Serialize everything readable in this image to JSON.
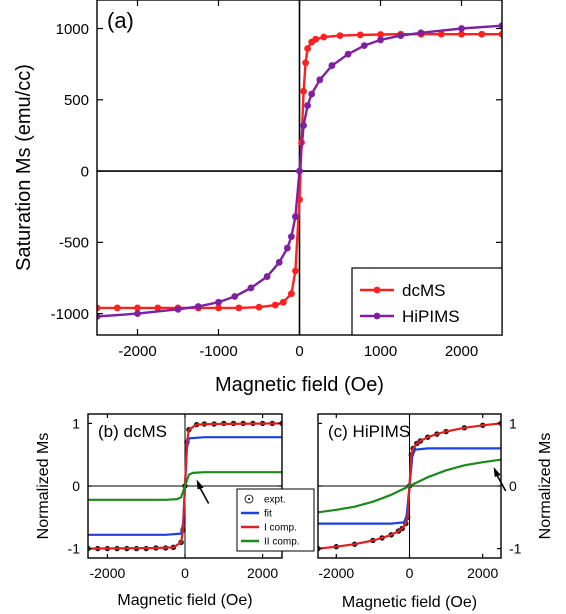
{
  "chart_data": [
    {
      "type": "line",
      "panel_label": "(a)",
      "xlabel": "Magnetic field (Oe)",
      "ylabel": "Saturation Ms (emu/cc)",
      "xlim": [
        -2500,
        2500
      ],
      "ylim": [
        -1150,
        1200
      ],
      "xticks": [
        -2000,
        -1000,
        0,
        1000,
        2000
      ],
      "yticks": [
        -1000,
        -500,
        0,
        500,
        1000
      ],
      "zero_lines": true,
      "legend_position": "bottom-right",
      "series": [
        {
          "name": "dcMS",
          "color": "#ff2020",
          "markers": true,
          "x": [
            -2500,
            -2250,
            -2000,
            -1750,
            -1500,
            -1250,
            -1000,
            -750,
            -500,
            -300,
            -200,
            -100,
            -50,
            0,
            25,
            50,
            75,
            100,
            150,
            200,
            300,
            500,
            750,
            1000,
            1250,
            1500,
            1750,
            2000,
            2250,
            2500
          ],
          "y": [
            -960,
            -960,
            -960,
            -960,
            -960,
            -960,
            -960,
            -960,
            -955,
            -940,
            -920,
            -860,
            -700,
            -200,
            200,
            560,
            760,
            860,
            905,
            925,
            940,
            950,
            955,
            958,
            960,
            960,
            960,
            960,
            960,
            960
          ]
        },
        {
          "name": "HiPIMS",
          "color": "#8020a0",
          "markers": true,
          "x": [
            -2500,
            -2000,
            -1500,
            -1250,
            -1000,
            -800,
            -600,
            -400,
            -250,
            -150,
            -100,
            -50,
            0,
            50,
            100,
            150,
            250,
            400,
            600,
            800,
            1000,
            1250,
            1500,
            2000,
            2500
          ],
          "y": [
            -1020,
            -1000,
            -970,
            -950,
            -920,
            -880,
            -820,
            -740,
            -640,
            -540,
            -460,
            -320,
            0,
            320,
            460,
            540,
            640,
            740,
            820,
            880,
            920,
            950,
            970,
            1000,
            1020
          ]
        }
      ]
    },
    {
      "type": "line",
      "panel_label": "(b) dcMS",
      "xlabel": "Magnetic field (Oe)",
      "ylabel": "Normalized Ms",
      "xlim": [
        -2500,
        2500
      ],
      "ylim": [
        -1.15,
        1.15
      ],
      "xticks": [
        -2000,
        0,
        2000
      ],
      "yticks": [
        -1,
        0,
        1
      ],
      "zero_lines": true,
      "annotation_arrow_x": 300,
      "legend_position": "bottom-right",
      "series": [
        {
          "name": "expt.",
          "color": "#000000",
          "markers": "open-circle",
          "x": [
            -2500,
            -2250,
            -2000,
            -1750,
            -1500,
            -1250,
            -1000,
            -750,
            -500,
            -300,
            -100,
            -50,
            0,
            50,
            100,
            300,
            500,
            750,
            1000,
            1250,
            1500,
            1750,
            2000,
            2250,
            2500
          ],
          "y": [
            -1.0,
            -1.0,
            -1.0,
            -1.0,
            -1.0,
            -1.0,
            -1.0,
            -0.99,
            -0.99,
            -0.98,
            -0.9,
            -0.7,
            0.0,
            0.7,
            0.9,
            0.98,
            0.99,
            0.99,
            1.0,
            1.0,
            1.0,
            1.0,
            1.0,
            1.0,
            1.0
          ]
        },
        {
          "name": "fit",
          "color": "#1f3fe0",
          "x": [
            -2500,
            -500,
            -100,
            -50,
            0,
            50,
            100,
            500,
            2500
          ],
          "y": [
            -0.78,
            -0.78,
            -0.76,
            -0.6,
            0.0,
            0.6,
            0.76,
            0.78,
            0.78
          ]
        },
        {
          "name": "I comp.",
          "color": "#e02020",
          "x": [
            -2500,
            -750,
            -300,
            -100,
            -50,
            0,
            50,
            100,
            300,
            750,
            2500
          ],
          "y": [
            -1.0,
            -0.99,
            -0.98,
            -0.9,
            -0.7,
            0.0,
            0.7,
            0.9,
            0.98,
            0.99,
            1.0
          ]
        },
        {
          "name": "II comp.",
          "color": "#1a8a1a",
          "x": [
            -2500,
            -500,
            -200,
            -100,
            0,
            100,
            200,
            500,
            2500
          ],
          "y": [
            -0.22,
            -0.22,
            -0.21,
            -0.18,
            0.0,
            0.18,
            0.21,
            0.22,
            0.22
          ]
        }
      ]
    },
    {
      "type": "line",
      "panel_label": "(c) HiPIMS",
      "xlabel": "Magnetic field (Oe)",
      "ylabel": "Normalized Ms",
      "xlim": [
        -2500,
        2500
      ],
      "ylim": [
        -1.15,
        1.15
      ],
      "xticks": [
        -2000,
        0,
        2000
      ],
      "yticks": [
        -1,
        0,
        1
      ],
      "zero_lines": true,
      "annotation_arrow_x": 2300,
      "series": [
        {
          "name": "expt.",
          "color": "#000000",
          "markers": "open-circle",
          "x": [
            -2500,
            -2000,
            -1500,
            -1000,
            -750,
            -500,
            -300,
            -200,
            -100,
            -50,
            0,
            50,
            100,
            200,
            300,
            500,
            750,
            1000,
            1500,
            2000,
            2500
          ],
          "y": [
            -1.0,
            -0.97,
            -0.93,
            -0.87,
            -0.83,
            -0.78,
            -0.72,
            -0.68,
            -0.6,
            -0.5,
            0.0,
            0.5,
            0.6,
            0.68,
            0.72,
            0.78,
            0.83,
            0.87,
            0.93,
            0.97,
            1.0
          ]
        },
        {
          "name": "fit",
          "color": "#1f3fe0",
          "x": [
            -2500,
            -500,
            -150,
            -80,
            0,
            80,
            150,
            500,
            2500
          ],
          "y": [
            -0.6,
            -0.6,
            -0.58,
            -0.48,
            0.0,
            0.48,
            0.58,
            0.6,
            0.6
          ]
        },
        {
          "name": "I comp.",
          "color": "#e02020",
          "x": [
            -2500,
            -2000,
            -1500,
            -1000,
            -750,
            -500,
            -300,
            -200,
            -100,
            -50,
            0,
            50,
            100,
            200,
            300,
            500,
            750,
            1000,
            1500,
            2000,
            2500
          ],
          "y": [
            -1.0,
            -0.97,
            -0.93,
            -0.87,
            -0.83,
            -0.78,
            -0.72,
            -0.68,
            -0.6,
            -0.5,
            0.0,
            0.5,
            0.6,
            0.68,
            0.72,
            0.78,
            0.83,
            0.87,
            0.93,
            0.97,
            1.0
          ]
        },
        {
          "name": "II comp.",
          "color": "#1a8a1a",
          "x": [
            -2500,
            -2000,
            -1500,
            -1000,
            -500,
            -250,
            0,
            250,
            500,
            1000,
            1500,
            2000,
            2500
          ],
          "y": [
            -0.42,
            -0.38,
            -0.33,
            -0.25,
            -0.14,
            -0.07,
            0.0,
            0.07,
            0.14,
            0.25,
            0.33,
            0.38,
            0.42
          ]
        }
      ]
    }
  ]
}
